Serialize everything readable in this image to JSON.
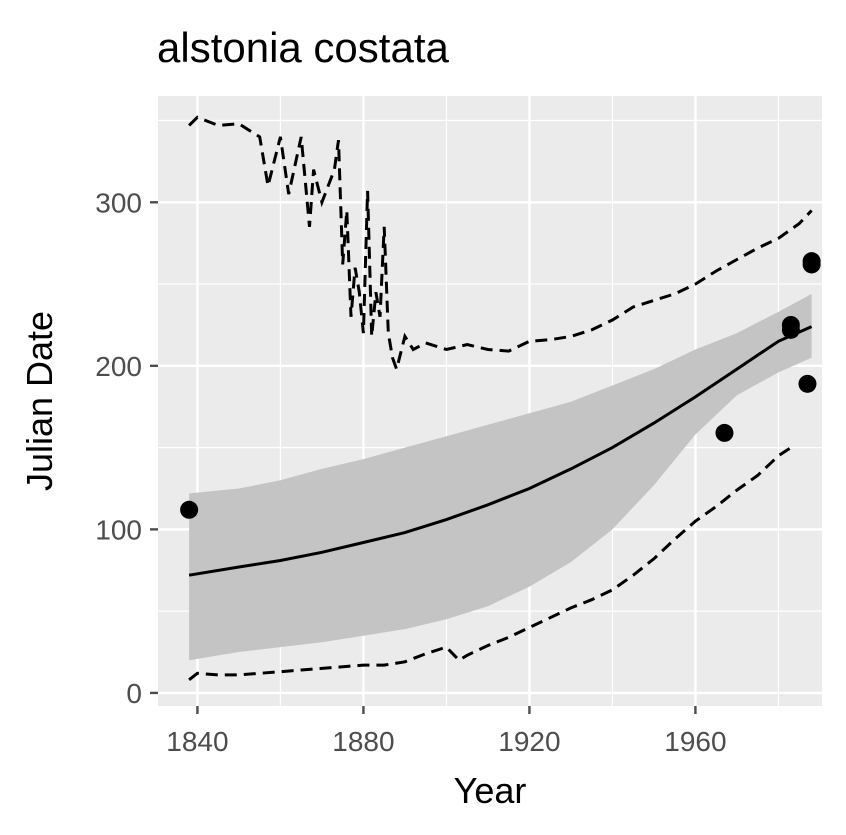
{
  "chart_data": {
    "type": "scatter",
    "title": "alstonia costata",
    "xlabel": "Year",
    "ylabel": "Julian Date",
    "xlim": [
      1830.5,
      1990.5
    ],
    "ylim": [
      -8,
      365
    ],
    "x_ticks": [
      1840,
      1880,
      1920,
      1960
    ],
    "x_tick_labels": [
      "1840",
      "1880",
      "1920",
      "1960"
    ],
    "y_ticks": [
      0,
      100,
      200,
      300
    ],
    "y_tick_labels": [
      "0",
      "100",
      "200",
      "300"
    ],
    "grid": true,
    "legend": "none",
    "colors": {
      "panel": "#ebebeb",
      "grid": "#ffffff",
      "ribbon": "#c4c4c4",
      "line": "#000000",
      "points": "#000000",
      "ticks": "#4d4d4d"
    },
    "points": [
      {
        "x": 1838,
        "y": 112
      },
      {
        "x": 1967,
        "y": 159
      },
      {
        "x": 1983,
        "y": 222
      },
      {
        "x": 1983,
        "y": 225
      },
      {
        "x": 1987,
        "y": 189
      },
      {
        "x": 1988,
        "y": 262
      },
      {
        "x": 1988,
        "y": 264
      }
    ],
    "fit": {
      "x": [
        1838,
        1850,
        1860,
        1870,
        1880,
        1890,
        1900,
        1910,
        1920,
        1930,
        1940,
        1950,
        1960,
        1970,
        1980,
        1988
      ],
      "y": [
        72,
        77,
        81,
        86,
        92,
        98,
        106,
        115,
        125,
        137,
        150,
        165,
        181,
        198,
        215,
        224
      ]
    },
    "ribbon": {
      "x": [
        1838,
        1850,
        1860,
        1870,
        1880,
        1890,
        1900,
        1910,
        1920,
        1930,
        1940,
        1950,
        1960,
        1970,
        1980,
        1988
      ],
      "lower": [
        20,
        25,
        28,
        31,
        35,
        39,
        45,
        53,
        65,
        80,
        100,
        127,
        158,
        182,
        196,
        205
      ],
      "upper": [
        122,
        125,
        130,
        137,
        143,
        150,
        157,
        164,
        171,
        178,
        188,
        198,
        210,
        220,
        233,
        244
      ]
    },
    "upper_band": {
      "x": [
        1838,
        1840,
        1845,
        1850,
        1855,
        1857,
        1860,
        1862,
        1865,
        1867,
        1868,
        1870,
        1873,
        1874,
        1875,
        1876,
        1877,
        1878,
        1879,
        1880,
        1881,
        1882,
        1883,
        1884,
        1885,
        1886,
        1887,
        1888,
        1890,
        1892,
        1895,
        1900,
        1905,
        1910,
        1915,
        1920,
        1925,
        1930,
        1935,
        1940,
        1945,
        1950,
        1955,
        1960,
        1965,
        1970,
        1975,
        1980,
        1985,
        1988
      ],
      "y": [
        347,
        352,
        347,
        348,
        340,
        310,
        340,
        305,
        340,
        285,
        320,
        300,
        320,
        338,
        262,
        295,
        230,
        260,
        245,
        220,
        307,
        218,
        245,
        230,
        285,
        220,
        205,
        198,
        218,
        210,
        214,
        210,
        213,
        210,
        209,
        215,
        216,
        218,
        222,
        228,
        236,
        240,
        244,
        250,
        258,
        265,
        272,
        278,
        287,
        295
      ]
    },
    "lower_band": {
      "x": [
        1838,
        1840,
        1845,
        1850,
        1855,
        1860,
        1865,
        1870,
        1875,
        1880,
        1885,
        1890,
        1895,
        1900,
        1903,
        1905,
        1910,
        1915,
        1920,
        1925,
        1930,
        1935,
        1940,
        1945,
        1950,
        1955,
        1960,
        1965,
        1970,
        1975,
        1980,
        1983
      ],
      "y": [
        8,
        12,
        11,
        11,
        12,
        13,
        14,
        15,
        16,
        17,
        17,
        19,
        24,
        28,
        20,
        23,
        29,
        34,
        40,
        46,
        52,
        57,
        63,
        72,
        82,
        94,
        105,
        114,
        124,
        133,
        145,
        150
      ]
    }
  }
}
